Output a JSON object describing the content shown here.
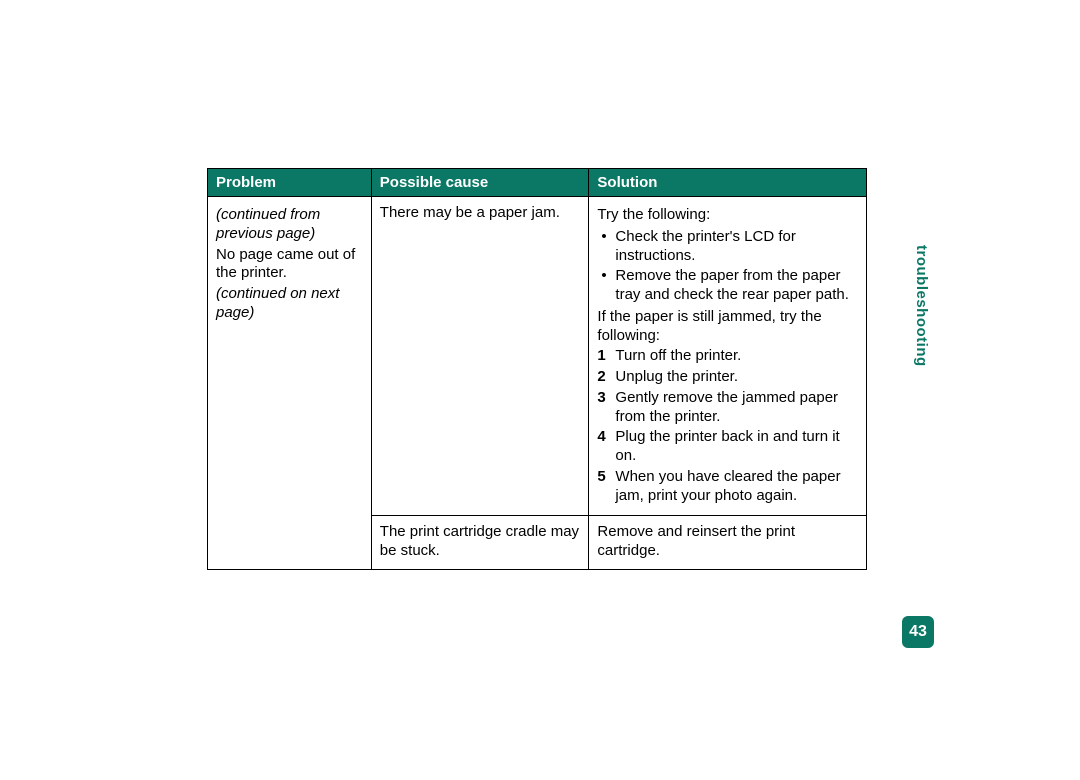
{
  "colors": {
    "accent": "#0a7864",
    "header_text": "#ffffff",
    "border": "#000000",
    "body_text": "#000000",
    "background": "#ffffff"
  },
  "side_label": "troubleshooting",
  "page_number": "43",
  "table": {
    "headers": {
      "problem": "Problem",
      "cause": "Possible cause",
      "solution": "Solution"
    },
    "problem": {
      "cont_from": "(continued from previous page)",
      "text": "No page came out of the printer.",
      "cont_on": "(continued on next page)"
    },
    "row1": {
      "cause": "There may be a paper jam.",
      "sol_intro": "Try the following:",
      "sol_bullets": {
        "b1": "Check the printer's LCD for instructions.",
        "b2": "Remove the paper from the paper tray and check the rear paper path."
      },
      "sol_mid": "If the paper is still jammed, try the following:",
      "sol_steps": {
        "s1": "Turn off the printer.",
        "s2": "Unplug the printer.",
        "s3": "Gently remove the jammed paper from the printer.",
        "s4": "Plug the printer back in and turn it on.",
        "s5": "When you have cleared the paper jam, print your photo again."
      }
    },
    "row2": {
      "cause": "The print cartridge cradle may be stuck.",
      "solution": "Remove and reinsert the print cartridge."
    }
  }
}
